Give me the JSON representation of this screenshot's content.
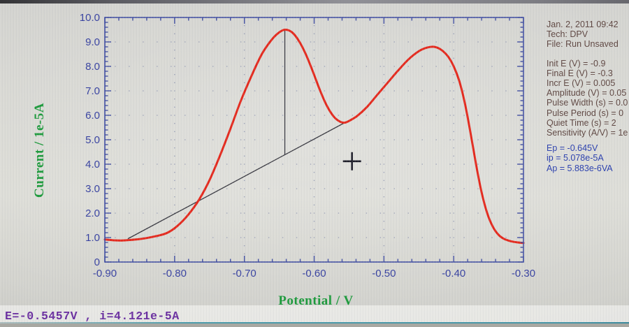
{
  "info_panel": {
    "header_lines": [
      "Jan. 2, 2011   09:42",
      "Tech: DPV",
      "File: Run Unsaved"
    ],
    "param_lines": [
      "Init E (V) = -0.9",
      "Final E (V) = -0.3",
      "Incr E (V) = 0.005",
      "Amplitude (V) = 0.05",
      "Pulse Width (s) = 0.0",
      "Pulse Period (s) = 0",
      "Quiet Time (s) = 2",
      "Sensitivity (A/V) = 1e"
    ],
    "result_lines": [
      "Ep = -0.645V",
      "ip = 5.078e-5A",
      "Ap = 5.883e-6VA"
    ],
    "param_color": "#5f4742",
    "result_color": "#2a3fae"
  },
  "status_bar": {
    "text": "E=-0.5457V , i=4.121e-5A",
    "color": "#6a2fa0"
  },
  "chart_data": {
    "type": "line",
    "title": "",
    "xlabel": "Potential / V",
    "ylabel": "Current / 1e-5A",
    "xlim": [
      -0.9,
      -0.3
    ],
    "ylim": [
      0,
      10
    ],
    "x_minor_step": 0.02,
    "y_minor_step": 0.2,
    "grid": "dotted",
    "axis_color": "#4350a2",
    "tick_label_color": "#3640a0",
    "title_color": "#1d9a3c",
    "grid_dot_color": "#7c84a6",
    "annotation_color": "#3a3a42",
    "x_ticks": [
      {
        "v": -0.9,
        "label": "-0.90"
      },
      {
        "v": -0.8,
        "label": "-0.80"
      },
      {
        "v": -0.7,
        "label": "-0.70"
      },
      {
        "v": -0.6,
        "label": "-0.60"
      },
      {
        "v": -0.5,
        "label": "-0.50"
      },
      {
        "v": -0.4,
        "label": "-0.40"
      },
      {
        "v": -0.3,
        "label": "-0.30"
      }
    ],
    "y_ticks": [
      {
        "v": 10,
        "label": "10.0"
      },
      {
        "v": 9,
        "label": "9.0"
      },
      {
        "v": 8,
        "label": "8.0"
      },
      {
        "v": 7,
        "label": "7.0"
      },
      {
        "v": 6,
        "label": "6.0"
      },
      {
        "v": 5,
        "label": "5.0"
      },
      {
        "v": 4,
        "label": "4.0"
      },
      {
        "v": 3,
        "label": "3.0"
      },
      {
        "v": 2,
        "label": "2.0"
      },
      {
        "v": 1,
        "label": "1.0"
      },
      {
        "v": 0,
        "label": "0"
      }
    ],
    "series": [
      {
        "name": "DPV current",
        "color": "#e42a1e",
        "points": [
          [
            -0.9,
            0.92
          ],
          [
            -0.888,
            0.89
          ],
          [
            -0.876,
            0.88
          ],
          [
            -0.864,
            0.9
          ],
          [
            -0.852,
            0.93
          ],
          [
            -0.84,
            0.98
          ],
          [
            -0.825,
            1.07
          ],
          [
            -0.81,
            1.2
          ],
          [
            -0.795,
            1.5
          ],
          [
            -0.78,
            1.95
          ],
          [
            -0.765,
            2.55
          ],
          [
            -0.75,
            3.35
          ],
          [
            -0.735,
            4.35
          ],
          [
            -0.72,
            5.45
          ],
          [
            -0.705,
            6.6
          ],
          [
            -0.69,
            7.6
          ],
          [
            -0.675,
            8.5
          ],
          [
            -0.662,
            9.05
          ],
          [
            -0.652,
            9.35
          ],
          [
            -0.642,
            9.5
          ],
          [
            -0.632,
            9.4
          ],
          [
            -0.622,
            9.05
          ],
          [
            -0.612,
            8.5
          ],
          [
            -0.602,
            7.8
          ],
          [
            -0.592,
            7.05
          ],
          [
            -0.582,
            6.4
          ],
          [
            -0.572,
            5.95
          ],
          [
            -0.563,
            5.74
          ],
          [
            -0.556,
            5.7
          ],
          [
            -0.548,
            5.8
          ],
          [
            -0.538,
            5.98
          ],
          [
            -0.524,
            6.35
          ],
          [
            -0.51,
            6.82
          ],
          [
            -0.495,
            7.32
          ],
          [
            -0.48,
            7.82
          ],
          [
            -0.465,
            8.28
          ],
          [
            -0.45,
            8.62
          ],
          [
            -0.438,
            8.77
          ],
          [
            -0.428,
            8.8
          ],
          [
            -0.418,
            8.68
          ],
          [
            -0.408,
            8.4
          ],
          [
            -0.4,
            8.0
          ],
          [
            -0.392,
            7.4
          ],
          [
            -0.384,
            6.5
          ],
          [
            -0.376,
            5.3
          ],
          [
            -0.368,
            4.0
          ],
          [
            -0.36,
            2.85
          ],
          [
            -0.352,
            2.0
          ],
          [
            -0.344,
            1.45
          ],
          [
            -0.336,
            1.12
          ],
          [
            -0.328,
            0.95
          ],
          [
            -0.318,
            0.85
          ],
          [
            -0.308,
            0.8
          ],
          [
            -0.3,
            0.78
          ]
        ]
      }
    ],
    "annotations": {
      "baseline": {
        "from": [
          -0.867,
          0.95
        ],
        "to": [
          -0.556,
          5.7
        ]
      },
      "peak_drop_line": {
        "x": -0.642,
        "from_i": 9.5,
        "to_i": 4.39
      },
      "cursor_cross": {
        "E": -0.5457,
        "i": 4.121
      },
      "peaks": [
        {
          "E": -0.642,
          "i": 9.5
        },
        {
          "E": -0.428,
          "i": 8.8
        }
      ]
    }
  }
}
